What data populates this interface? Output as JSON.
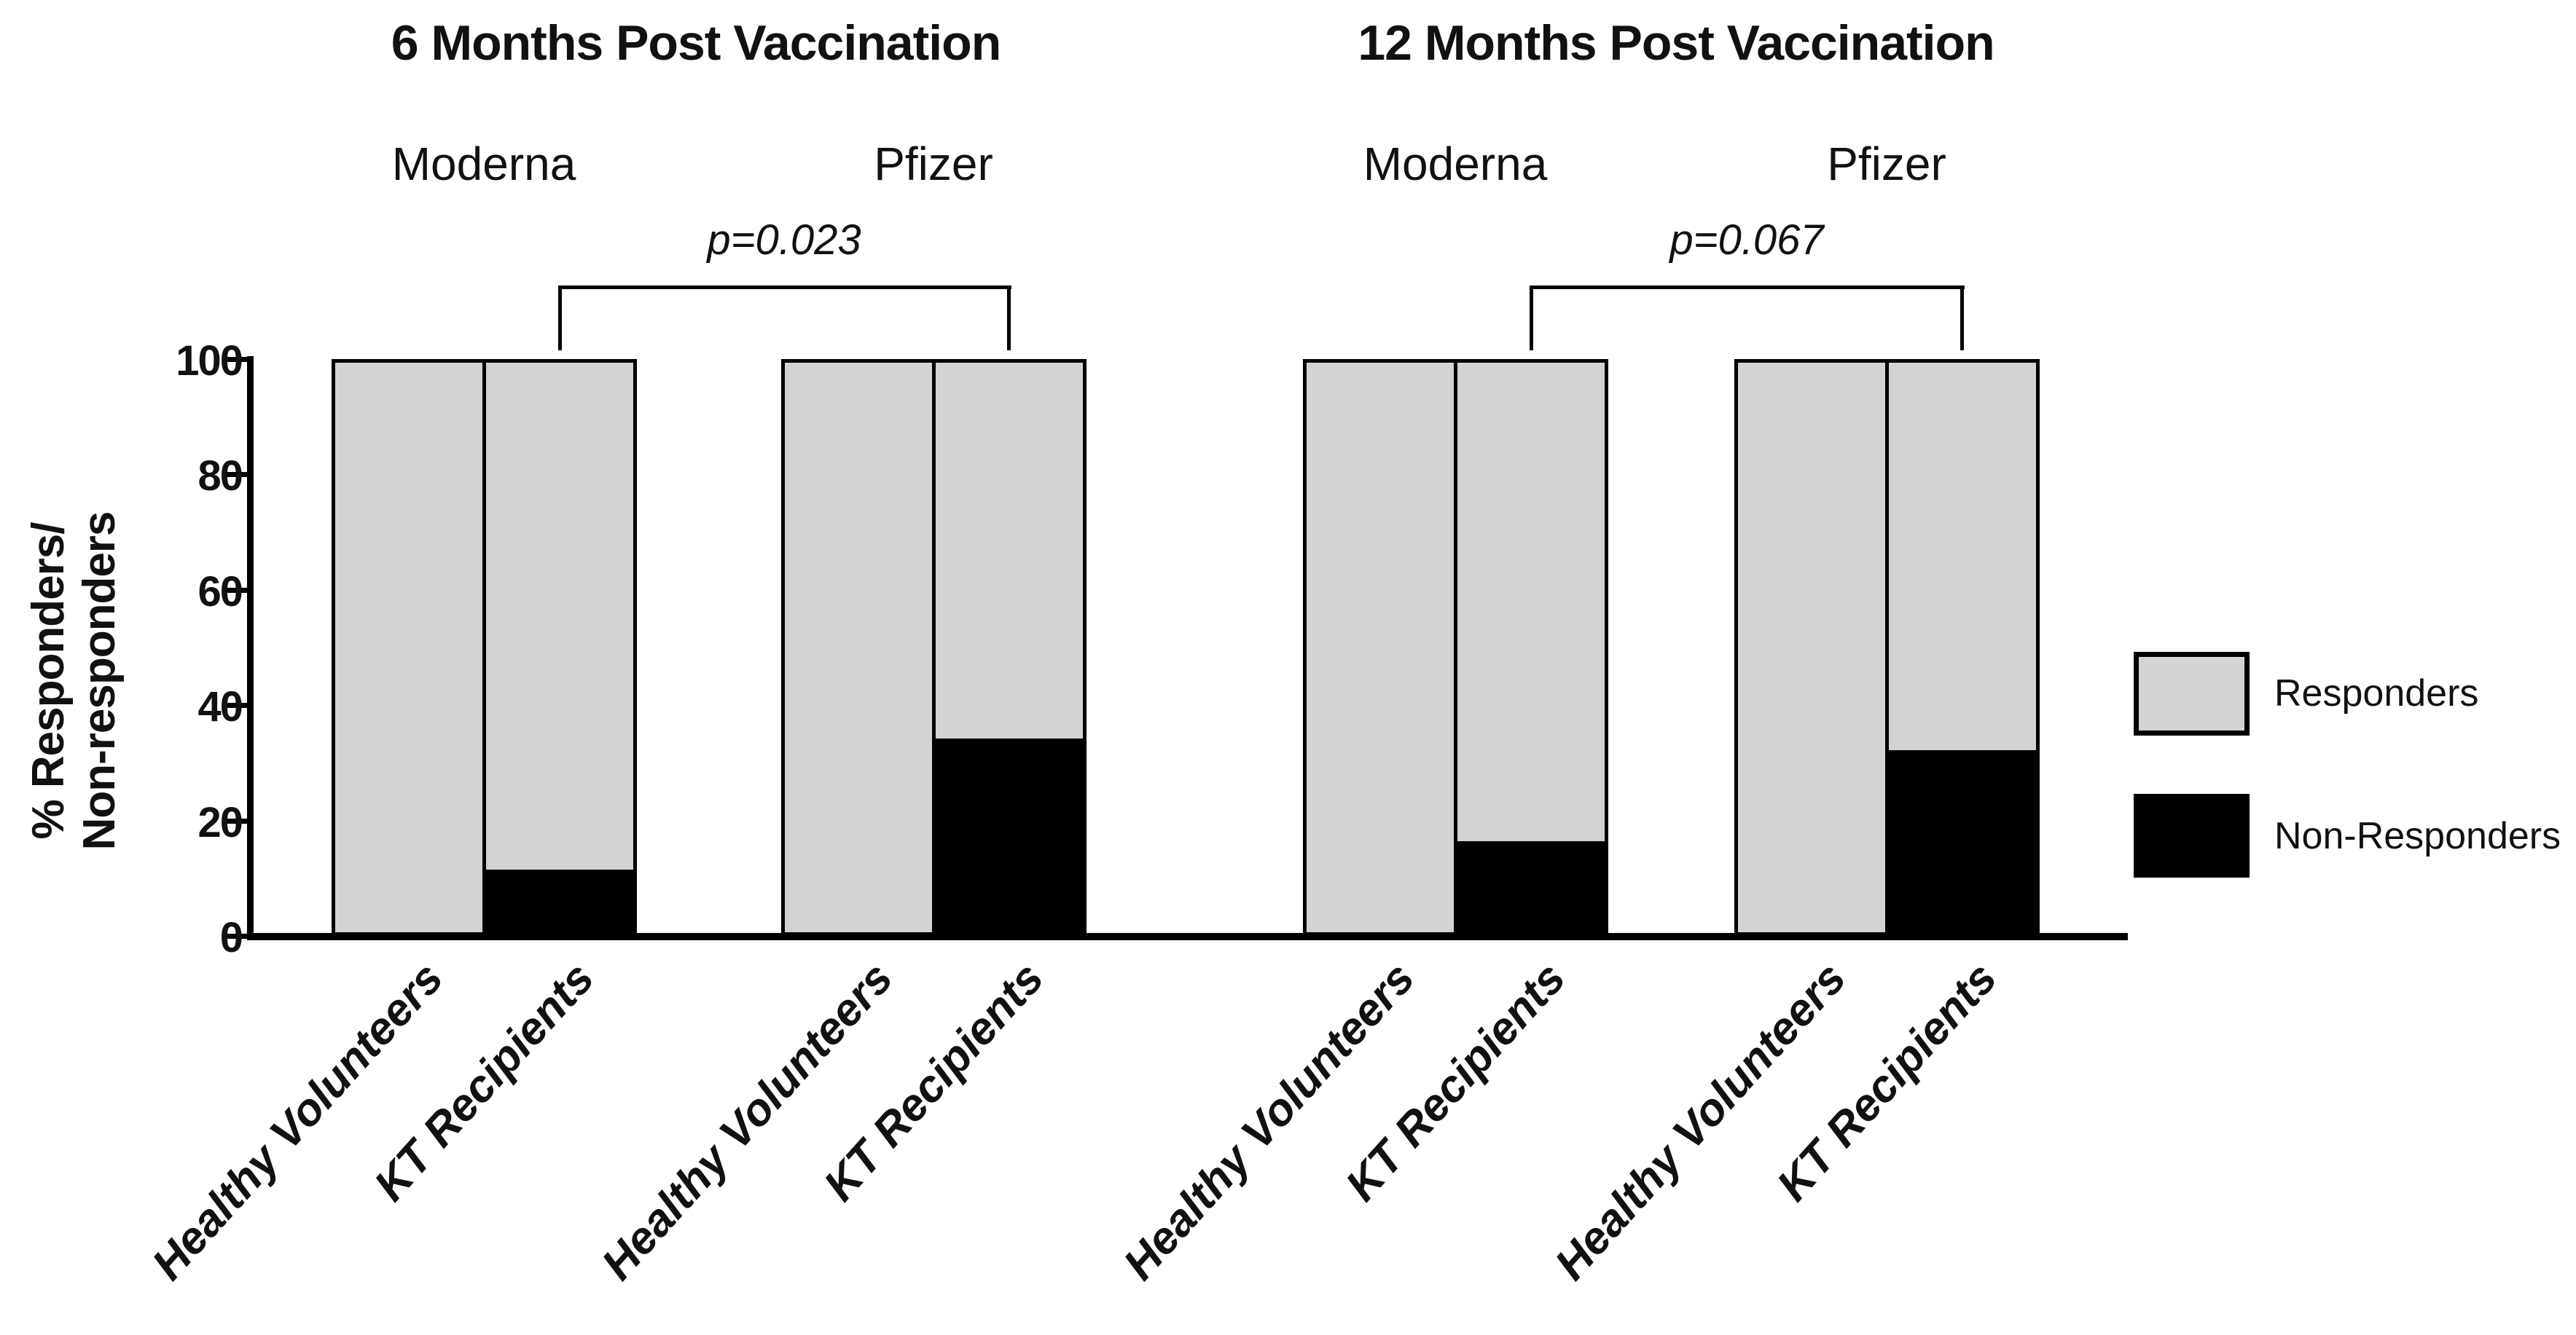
{
  "chart_data": {
    "type": "bar",
    "stacked": true,
    "title": "",
    "ylabel_lines": [
      "% Responders/",
      "Non-responders"
    ],
    "yticks": [
      0,
      20,
      40,
      60,
      80,
      100
    ],
    "ylim": [
      0,
      100
    ],
    "grid": false,
    "legend_position": "right",
    "colors": {
      "responders": "#d3d3d3",
      "non_responders": "#000000",
      "axis": "#000000",
      "background": "#ffffff"
    },
    "legend": [
      {
        "label": "Responders",
        "color": "#d3d3d3"
      },
      {
        "label": "Non-Responders",
        "color": "#000000"
      }
    ],
    "panels": [
      {
        "title": "6 Months Post Vaccination",
        "p_label": "p=0.023",
        "groups": [
          {
            "label": "Moderna",
            "bars": [
              {
                "category": "Healthy Volunteers",
                "responders": 100,
                "non_responders": 0
              },
              {
                "category": "KT Recipients",
                "responders": 89,
                "non_responders": 11
              }
            ]
          },
          {
            "label": "Pfizer",
            "bars": [
              {
                "category": "Healthy Volunteers",
                "responders": 100,
                "non_responders": 0
              },
              {
                "category": "KT Recipients",
                "responders": 66,
                "non_responders": 34
              }
            ]
          }
        ]
      },
      {
        "title": "12 Months Post Vaccination",
        "p_label": "p=0.067",
        "groups": [
          {
            "label": "Moderna",
            "bars": [
              {
                "category": "Healthy Volunteers",
                "responders": 100,
                "non_responders": 0
              },
              {
                "category": "KT Recipients",
                "responders": 84,
                "non_responders": 16
              }
            ]
          },
          {
            "label": "Pfizer",
            "bars": [
              {
                "category": "Healthy Volunteers",
                "responders": 100,
                "non_responders": 0
              },
              {
                "category": "KT Recipients",
                "responders": 68,
                "non_responders": 32
              }
            ]
          }
        ]
      }
    ]
  }
}
